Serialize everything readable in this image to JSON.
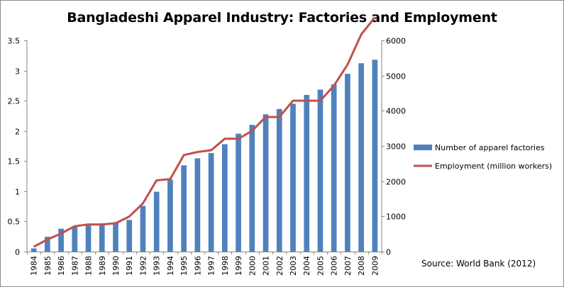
{
  "chart_data": {
    "type": "bar",
    "title": "Bangladeshi Apparel Industry: Factories and Employment",
    "source": "Source: World Bank (2012)",
    "categories": [
      "1984",
      "1985",
      "1986",
      "1987",
      "1988",
      "1989",
      "1990",
      "1991",
      "1992",
      "1993",
      "1994",
      "1995",
      "1996",
      "1997",
      "1998",
      "1999",
      "2000",
      "2001",
      "2002",
      "2003",
      "2004",
      "2005",
      "2006",
      "2007",
      "2008",
      "2009"
    ],
    "series": [
      {
        "name": "Number of apparel factories",
        "type": "bar",
        "axis": "right",
        "color": "#4f81bd",
        "values": [
          90,
          420,
          650,
          700,
          760,
          800,
          830,
          900,
          1300,
          1700,
          2050,
          2450,
          2650,
          2800,
          3050,
          3350,
          3600,
          3900,
          4050,
          4200,
          4450,
          4600,
          4750,
          5050,
          5350,
          5450
        ]
      },
      {
        "name": "Employment (million workers)",
        "type": "line",
        "axis": "left",
        "color": "#c0504d",
        "values": [
          0.08,
          0.2,
          0.3,
          0.42,
          0.45,
          0.45,
          0.47,
          0.58,
          0.8,
          1.18,
          1.2,
          1.6,
          1.65,
          1.68,
          1.87,
          1.87,
          2.0,
          2.23,
          2.23,
          2.5,
          2.5,
          2.5,
          2.75,
          3.1,
          3.6,
          3.88
        ]
      }
    ],
    "left_axis": {
      "ylim": [
        0,
        3.5
      ],
      "ticks": [
        "0",
        "0.5",
        "1",
        "1.5",
        "2",
        "2.5",
        "3",
        "3.5"
      ]
    },
    "right_axis": {
      "ylim": [
        0,
        6000
      ],
      "ticks": [
        "0",
        "1000",
        "2000",
        "3000",
        "4000",
        "5000",
        "6000"
      ]
    },
    "legend_position": "right"
  }
}
